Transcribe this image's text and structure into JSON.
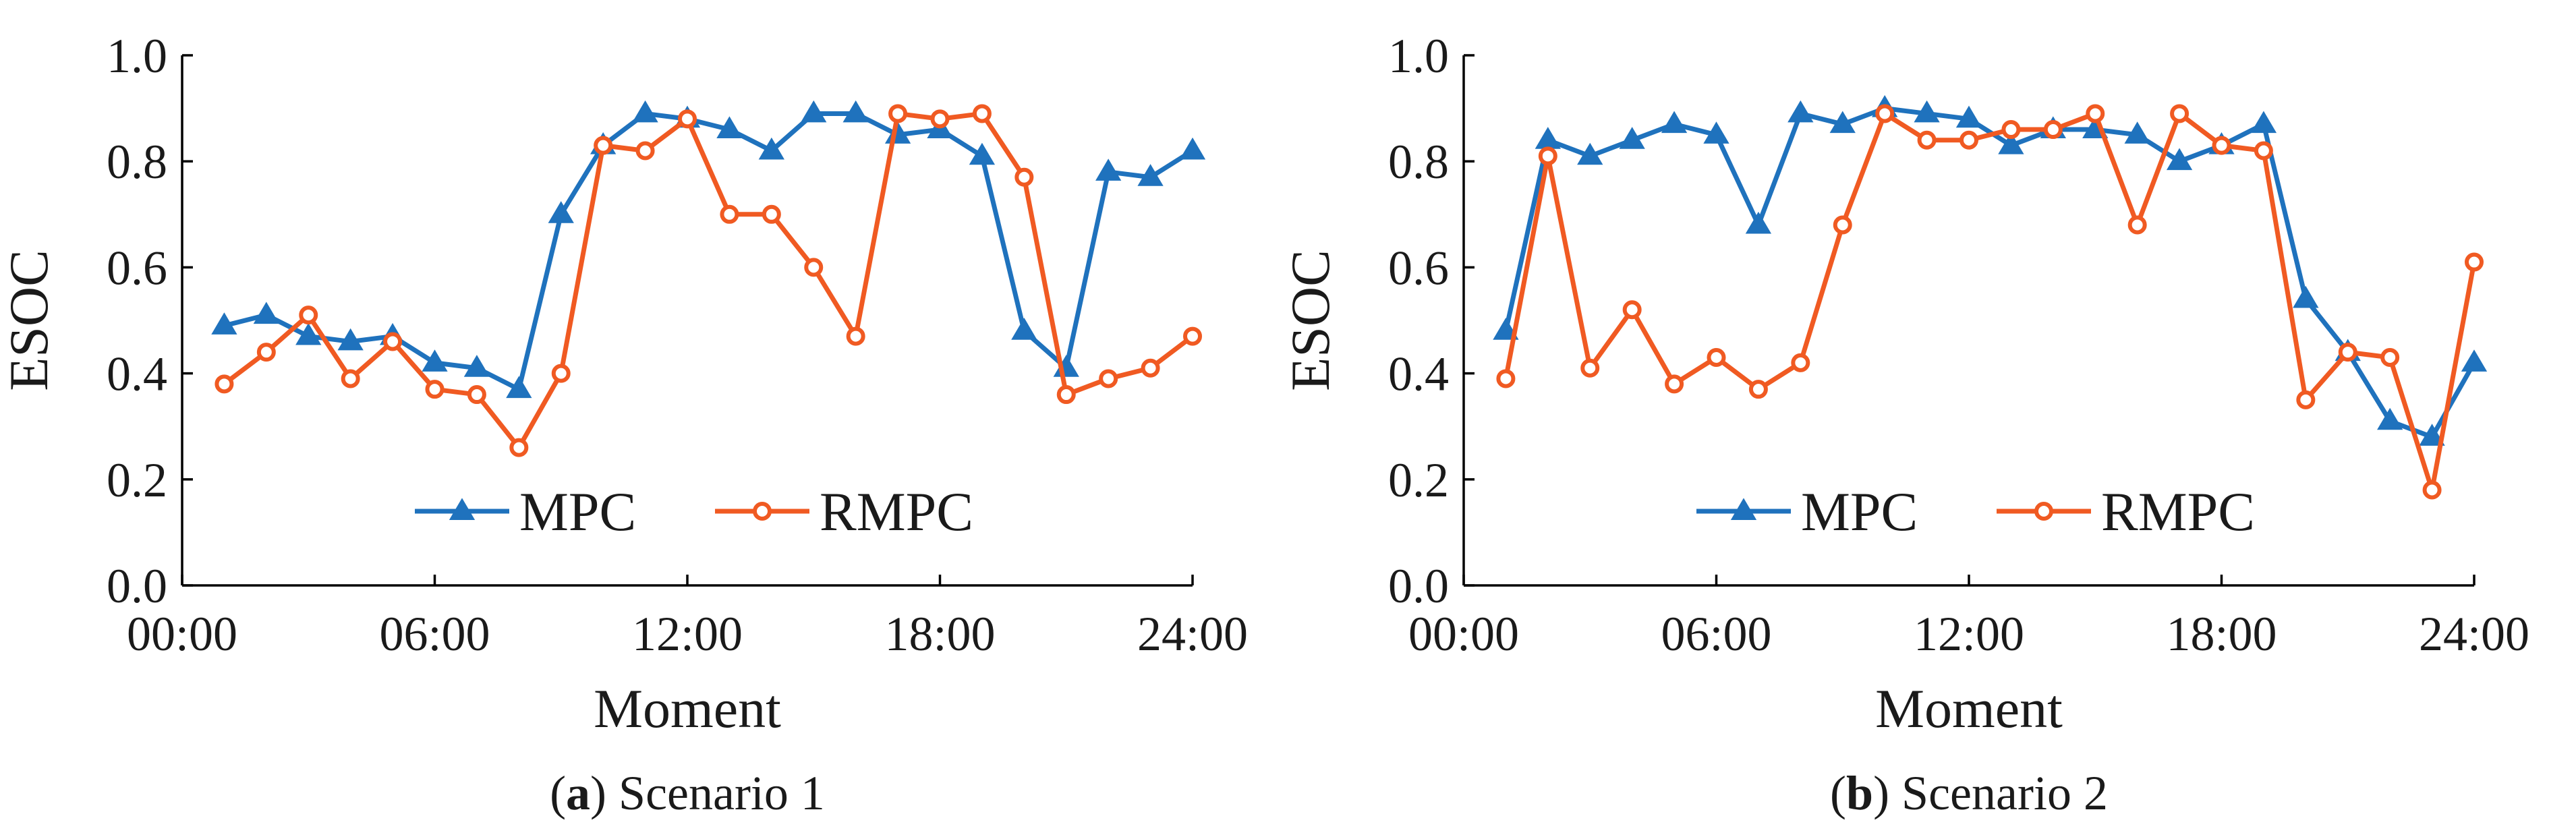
{
  "colors": {
    "MPC": "#1f72bd",
    "RMPC": "#f05a22"
  },
  "chart_data": [
    {
      "type": "line",
      "caption_letter": "a",
      "caption_open": "(",
      "caption_close": ")",
      "caption_text": " Scenario 1",
      "xlabel": "Moment",
      "ylabel": "ESOC",
      "xlim": [
        0,
        24
      ],
      "ylim": [
        0,
        1
      ],
      "x_ticks": [
        0,
        6,
        12,
        18,
        24
      ],
      "x_tick_labels": [
        "00:00",
        "06:00",
        "12:00",
        "18:00",
        "24:00"
      ],
      "y_ticks": [
        0,
        0.2,
        0.4,
        0.6,
        0.8,
        1.0
      ],
      "y_tick_labels": [
        "0.0",
        "0.2",
        "0.4",
        "0.6",
        "0.8",
        "1.0"
      ],
      "legend": [
        "MPC",
        "RMPC"
      ],
      "legend_position": "bottom-center",
      "x": [
        1,
        2,
        3,
        4,
        5,
        6,
        7,
        8,
        9,
        10,
        11,
        12,
        13,
        14,
        15,
        16,
        17,
        18,
        19,
        20,
        21,
        22,
        23,
        24
      ],
      "series": [
        {
          "name": "MPC",
          "marker": "triangle",
          "values": [
            0.49,
            0.51,
            0.47,
            0.46,
            0.47,
            0.42,
            0.41,
            0.37,
            0.7,
            0.83,
            0.89,
            0.88,
            0.86,
            0.82,
            0.89,
            0.89,
            0.85,
            0.86,
            0.81,
            0.48,
            0.41,
            0.78,
            0.77,
            0.82
          ]
        },
        {
          "name": "RMPC",
          "marker": "circle",
          "values": [
            0.38,
            0.44,
            0.51,
            0.39,
            0.46,
            0.37,
            0.36,
            0.26,
            0.4,
            0.83,
            0.82,
            0.88,
            0.7,
            0.7,
            0.6,
            0.47,
            0.89,
            0.88,
            0.89,
            0.77,
            0.36,
            0.39,
            0.41,
            0.47
          ]
        }
      ]
    },
    {
      "type": "line",
      "caption_letter": "b",
      "caption_open": "(",
      "caption_close": ")",
      "caption_text": " Scenario 2",
      "xlabel": "Moment",
      "ylabel": "ESOC",
      "xlim": [
        0,
        24
      ],
      "ylim": [
        0,
        1
      ],
      "x_ticks": [
        0,
        6,
        12,
        18,
        24
      ],
      "x_tick_labels": [
        "00:00",
        "06:00",
        "12:00",
        "18:00",
        "24:00"
      ],
      "y_ticks": [
        0,
        0.2,
        0.4,
        0.6,
        0.8,
        1.0
      ],
      "y_tick_labels": [
        "0.0",
        "0.2",
        "0.4",
        "0.6",
        "0.8",
        "1.0"
      ],
      "legend": [
        "MPC",
        "RMPC"
      ],
      "legend_position": "bottom-center",
      "x": [
        1,
        2,
        3,
        4,
        5,
        6,
        7,
        8,
        9,
        10,
        11,
        12,
        13,
        14,
        15,
        16,
        17,
        18,
        19,
        20,
        21,
        22,
        23,
        24
      ],
      "series": [
        {
          "name": "MPC",
          "marker": "triangle",
          "values": [
            0.48,
            0.84,
            0.81,
            0.84,
            0.87,
            0.85,
            0.68,
            0.89,
            0.87,
            0.9,
            0.89,
            0.88,
            0.83,
            0.86,
            0.86,
            0.85,
            0.8,
            0.83,
            0.87,
            0.54,
            0.44,
            0.31,
            0.28,
            0.42
          ]
        },
        {
          "name": "RMPC",
          "marker": "circle",
          "values": [
            0.39,
            0.81,
            0.41,
            0.52,
            0.38,
            0.43,
            0.37,
            0.42,
            0.68,
            0.89,
            0.84,
            0.84,
            0.86,
            0.86,
            0.89,
            0.68,
            0.89,
            0.83,
            0.82,
            0.35,
            0.44,
            0.43,
            0.18,
            0.61
          ]
        }
      ]
    }
  ]
}
